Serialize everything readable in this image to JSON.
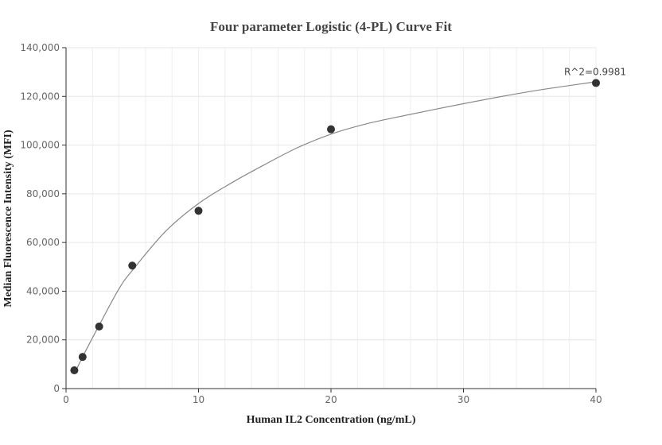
{
  "chart_data": {
    "type": "scatter",
    "title": "Four parameter Logistic (4-PL) Curve Fit",
    "xlabel": "Human IL2 Concentration (ng/mL)",
    "ylabel": "Median Fluorescence Intensity (MFI)",
    "xlim": [
      0,
      40
    ],
    "ylim": [
      0,
      140000
    ],
    "xticks": [
      0,
      10,
      20,
      30,
      40
    ],
    "yticks": [
      0,
      20000,
      40000,
      60000,
      80000,
      100000,
      120000,
      140000
    ],
    "xtick_labels": [
      "0",
      "10",
      "20",
      "30",
      "40"
    ],
    "ytick_labels": [
      "0",
      "20,000",
      "40,000",
      "60,000",
      "80,000",
      "100,000",
      "120,000",
      "140,000"
    ],
    "grid": true,
    "series": [
      {
        "points": [
          {
            "x": 0.625,
            "y": 7500
          },
          {
            "x": 1.25,
            "y": 13000
          },
          {
            "x": 2.5,
            "y": 25500
          },
          {
            "x": 5,
            "y": 50500
          },
          {
            "x": 10,
            "y": 73000
          },
          {
            "x": 20,
            "y": 106500
          },
          {
            "x": 40,
            "y": 125500
          }
        ],
        "color": "#333333"
      }
    ],
    "fit_curve": {
      "x": [
        0.625,
        1.25,
        2.5,
        4,
        5,
        7.5,
        10,
        12.5,
        15,
        17.5,
        20,
        22.5,
        25,
        30,
        35,
        40
      ],
      "y": [
        6000,
        13000,
        26000,
        41000,
        48500,
        64500,
        76000,
        84500,
        92000,
        99000,
        104500,
        108500,
        111500,
        117000,
        122000,
        126000
      ],
      "color": "#888888"
    },
    "annotations": [
      {
        "text": "R^2=0.9981",
        "x": 40,
        "y": 125500
      }
    ]
  }
}
